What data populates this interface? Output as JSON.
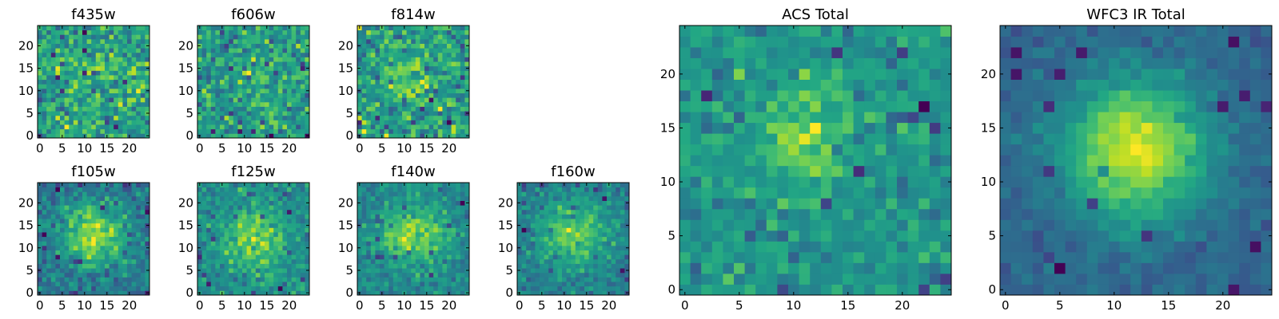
{
  "chart_data": [
    {
      "type": "heatmap",
      "title": "f435w",
      "xticks": [
        "0",
        "5",
        "10",
        "15",
        "20"
      ],
      "yticks": [
        "0",
        "5",
        "10",
        "15",
        "20"
      ],
      "xlim": [
        -0.5,
        24.5
      ],
      "ylim": [
        -0.5,
        24.5
      ],
      "grid_size": 25,
      "colormap": "viridis",
      "peak": [
        12,
        13
      ],
      "peak_strength": 0.15,
      "peak_sigma": 3,
      "noise": 1.0,
      "seed": 435
    },
    {
      "type": "heatmap",
      "title": "f606w",
      "xticks": [
        "0",
        "5",
        "10",
        "15",
        "20"
      ],
      "yticks": [
        "0",
        "5",
        "10",
        "15",
        "20"
      ],
      "xlim": [
        -0.5,
        24.5
      ],
      "ylim": [
        -0.5,
        24.5
      ],
      "grid_size": 25,
      "colormap": "viridis",
      "peak": [
        12,
        13
      ],
      "peak_strength": 0.25,
      "peak_sigma": 3,
      "noise": 1.0,
      "seed": 606
    },
    {
      "type": "heatmap",
      "title": "f814w",
      "xticks": [
        "0",
        "5",
        "10",
        "15",
        "20"
      ],
      "yticks": [
        "0",
        "5",
        "10",
        "15",
        "20"
      ],
      "xlim": [
        -0.5,
        24.5
      ],
      "ylim": [
        -0.5,
        24.5
      ],
      "grid_size": 25,
      "colormap": "viridis",
      "peak": [
        11,
        13
      ],
      "peak_strength": 0.4,
      "peak_sigma": 3.5,
      "noise": 1.0,
      "seed": 814
    },
    {
      "type": "heatmap",
      "title": "f105w",
      "xticks": [
        "0",
        "5",
        "10",
        "15",
        "20"
      ],
      "yticks": [
        "0",
        "5",
        "10",
        "15",
        "20"
      ],
      "xlim": [
        -0.5,
        24.5
      ],
      "ylim": [
        -0.5,
        24.5
      ],
      "grid_size": 25,
      "colormap": "viridis",
      "peak": [
        12,
        13
      ],
      "peak_strength": 0.9,
      "peak_sigma": 5,
      "noise": 0.8,
      "seed": 105
    },
    {
      "type": "heatmap",
      "title": "f125w",
      "xticks": [
        "0",
        "5",
        "10",
        "15",
        "20"
      ],
      "yticks": [
        "0",
        "5",
        "10",
        "15",
        "20"
      ],
      "xlim": [
        -0.5,
        24.5
      ],
      "ylim": [
        -0.5,
        24.5
      ],
      "grid_size": 25,
      "colormap": "viridis",
      "peak": [
        12,
        12
      ],
      "peak_strength": 0.8,
      "peak_sigma": 5,
      "noise": 0.9,
      "seed": 125
    },
    {
      "type": "heatmap",
      "title": "f140w",
      "xticks": [
        "0",
        "5",
        "10",
        "15",
        "20"
      ],
      "yticks": [
        "0",
        "5",
        "10",
        "15",
        "20"
      ],
      "xlim": [
        -0.5,
        24.5
      ],
      "ylim": [
        -0.5,
        24.5
      ],
      "grid_size": 25,
      "colormap": "viridis",
      "peak": [
        12,
        13
      ],
      "peak_strength": 0.9,
      "peak_sigma": 5,
      "noise": 0.8,
      "seed": 140
    },
    {
      "type": "heatmap",
      "title": "f160w",
      "xticks": [
        "0",
        "5",
        "10",
        "15",
        "20"
      ],
      "yticks": [
        "0",
        "5",
        "10",
        "15",
        "20"
      ],
      "xlim": [
        -0.5,
        24.5
      ],
      "ylim": [
        -0.5,
        24.5
      ],
      "grid_size": 25,
      "colormap": "viridis",
      "peak": [
        12,
        13
      ],
      "peak_strength": 0.9,
      "peak_sigma": 5,
      "noise": 0.8,
      "seed": 160
    },
    {
      "type": "heatmap",
      "title": "ACS Total",
      "xticks": [
        "0",
        "5",
        "10",
        "15",
        "20"
      ],
      "yticks": [
        "0",
        "5",
        "10",
        "15",
        "20"
      ],
      "xlim": [
        -0.5,
        24.5
      ],
      "ylim": [
        -0.5,
        24.5
      ],
      "grid_size": 25,
      "colormap": "viridis",
      "peak": [
        11,
        14
      ],
      "peak_strength": 0.6,
      "peak_sigma": 3,
      "noise": 0.75,
      "seed": 7
    },
    {
      "type": "heatmap",
      "title": "WFC3 IR Total",
      "xticks": [
        "0",
        "5",
        "10",
        "15",
        "20"
      ],
      "yticks": [
        "0",
        "5",
        "10",
        "15",
        "20"
      ],
      "xlim": [
        -0.5,
        24.5
      ],
      "ylim": [
        -0.5,
        24.5
      ],
      "grid_size": 25,
      "colormap": "viridis",
      "peak": [
        12,
        13
      ],
      "peak_strength": 1.6,
      "peak_sigma": 4.5,
      "noise": 0.45,
      "seed": 3
    }
  ]
}
